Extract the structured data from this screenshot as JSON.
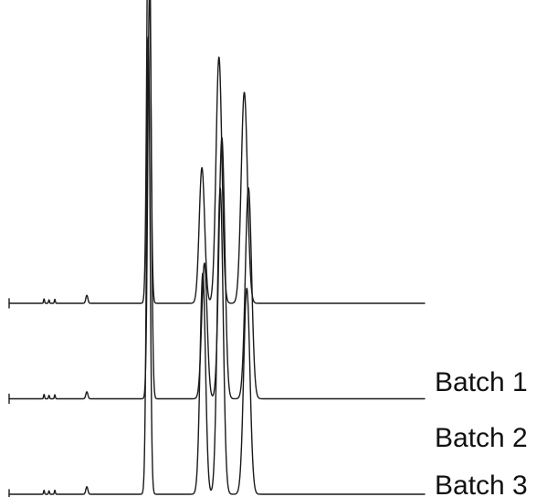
{
  "chart_data": {
    "type": "line",
    "title": "",
    "xlabel": "",
    "ylabel": "",
    "grid": false,
    "xlim": [
      0,
      100
    ],
    "ylim": [
      0,
      100
    ],
    "series": [
      {
        "name": "Batch 1",
        "baseline_offset": 38,
        "peaks": [
          {
            "x": 8.4,
            "height": 0.9,
            "width": 0.12
          },
          {
            "x": 9.6,
            "height": 0.7,
            "width": 0.12
          },
          {
            "x": 11.0,
            "height": 0.8,
            "width": 0.12
          },
          {
            "x": 18.7,
            "height": 1.6,
            "width": 0.25
          },
          {
            "x": 33.6,
            "height": 95.0,
            "width": 0.42
          },
          {
            "x": 46.4,
            "height": 27.0,
            "width": 0.65
          },
          {
            "x": 50.5,
            "height": 49.0,
            "width": 0.7
          },
          {
            "x": 56.6,
            "height": 42.0,
            "width": 0.75
          }
        ]
      },
      {
        "name": "Batch 2",
        "baseline_offset": 19,
        "peaks": [
          {
            "x": 8.4,
            "height": 0.9,
            "width": 0.12
          },
          {
            "x": 9.6,
            "height": 0.7,
            "width": 0.12
          },
          {
            "x": 11.0,
            "height": 0.8,
            "width": 0.12
          },
          {
            "x": 18.7,
            "height": 1.4,
            "width": 0.25
          },
          {
            "x": 33.8,
            "height": 82.0,
            "width": 0.42
          },
          {
            "x": 47.0,
            "height": 27.0,
            "width": 0.65
          },
          {
            "x": 51.2,
            "height": 52.0,
            "width": 0.7
          },
          {
            "x": 57.6,
            "height": 42.0,
            "width": 0.75
          }
        ]
      },
      {
        "name": "Batch 3",
        "baseline_offset": 0,
        "peaks": [
          {
            "x": 8.4,
            "height": 0.8,
            "width": 0.12
          },
          {
            "x": 9.6,
            "height": 0.7,
            "width": 0.12
          },
          {
            "x": 11.0,
            "height": 0.8,
            "width": 0.12
          },
          {
            "x": 18.7,
            "height": 1.5,
            "width": 0.25
          },
          {
            "x": 33.5,
            "height": 91.0,
            "width": 0.42
          },
          {
            "x": 46.6,
            "height": 44.0,
            "width": 0.65
          },
          {
            "x": 50.8,
            "height": 61.0,
            "width": 0.7
          },
          {
            "x": 57.2,
            "height": 41.0,
            "width": 0.75
          }
        ]
      }
    ]
  }
}
